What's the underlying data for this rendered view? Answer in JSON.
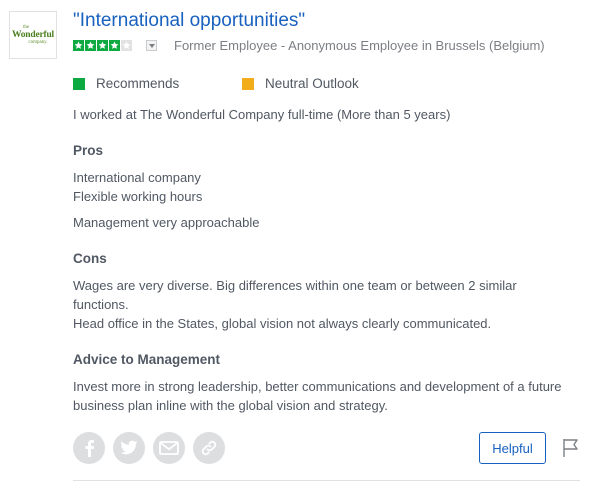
{
  "company_logo": {
    "line1": "the",
    "line2": "Wonderful",
    "line3": "company."
  },
  "review": {
    "title": "\"International opportunities\"",
    "rating": {
      "value": 4,
      "max": 5
    },
    "author": "Former Employee - Anonymous Employee in Brussels (Belgium)",
    "badges": {
      "recommends": "Recommends",
      "outlook": "Neutral Outlook"
    },
    "employment": "I worked at The Wonderful Company full-time (More than 5 years)",
    "pros": {
      "heading": "Pros",
      "lines": [
        "International company",
        "Flexible working hours",
        "Management very approachable"
      ]
    },
    "cons": {
      "heading": "Cons",
      "lines": [
        "Wages are very diverse. Big differences within one team or between 2 similar",
        "functions.",
        "Head office in the States, global vision not always clearly communicated."
      ]
    },
    "advice": {
      "heading": "Advice to Management",
      "lines": [
        "Invest more in strong leadership, better communications and development of a future",
        "business plan inline with the global vision and strategy."
      ]
    }
  },
  "actions": {
    "helpful_label": "Helpful",
    "share_icons": [
      "facebook-icon",
      "twitter-icon",
      "email-icon",
      "link-icon"
    ],
    "flag_icon": "flag-icon"
  },
  "colors": {
    "title_link": "#1861bf",
    "star_filled": "#0caa41",
    "star_empty": "#e2e2e2",
    "recommends": "#0caa41",
    "neutral_outlook": "#f2ad1b",
    "share_icon_bg": "#dcdee0"
  }
}
